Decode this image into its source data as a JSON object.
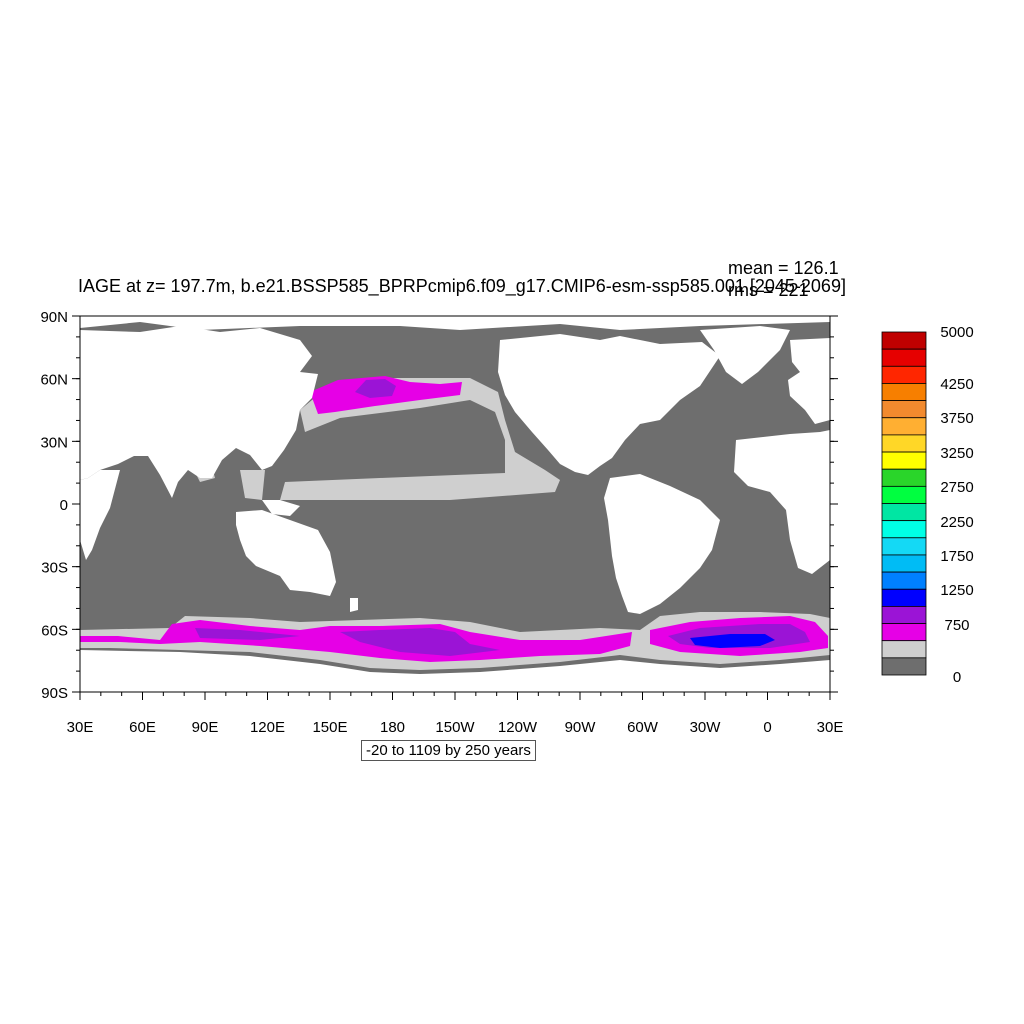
{
  "figure": {
    "title": "IAGE at z= 197.7m, b.e21.BSSP585_BPRPcmip6.f09_g17.CMIP6-esm-ssp585.001 [2045-2069]",
    "mean_text": "mean = 126.1",
    "rms_text": "rms = 221",
    "contour_info": "-20 to 1109 by 250 years"
  },
  "colors": {
    "land": "#ffffff",
    "ocean_low": "#6e6e6e",
    "band_250": "#cfcfcf",
    "band_500": "#e600e6",
    "band_750": "#9b14d6",
    "band_1000": "#0000ff"
  },
  "chart_data": {
    "type": "heatmap",
    "variable": "IAGE",
    "lat_labels": [
      "90N",
      "60N",
      "30N",
      "0",
      "30S",
      "60S",
      "90S"
    ],
    "lon_labels": [
      "30E",
      "60E",
      "90E",
      "120E",
      "150E",
      "180",
      "150W",
      "120W",
      "90W",
      "60W",
      "30W",
      "0",
      "30E"
    ],
    "colorbar": {
      "labels": [
        "5000",
        "4250",
        "3750",
        "3250",
        "2750",
        "2250",
        "1750",
        "1250",
        "750",
        "0"
      ],
      "colors": [
        "#c00000",
        "#e60000",
        "#ff2600",
        "#f77f00",
        "#f28a2e",
        "#ffaf32",
        "#ffd727",
        "#ffff00",
        "#2ad52a",
        "#00ff40",
        "#00e6a3",
        "#00ffe6",
        "#14d9f5",
        "#00bcf5",
        "#0080ff",
        "#0000ff",
        "#9b14d6",
        "#e600e6",
        "#cfcfcf",
        "#6e6e6e"
      ]
    }
  }
}
